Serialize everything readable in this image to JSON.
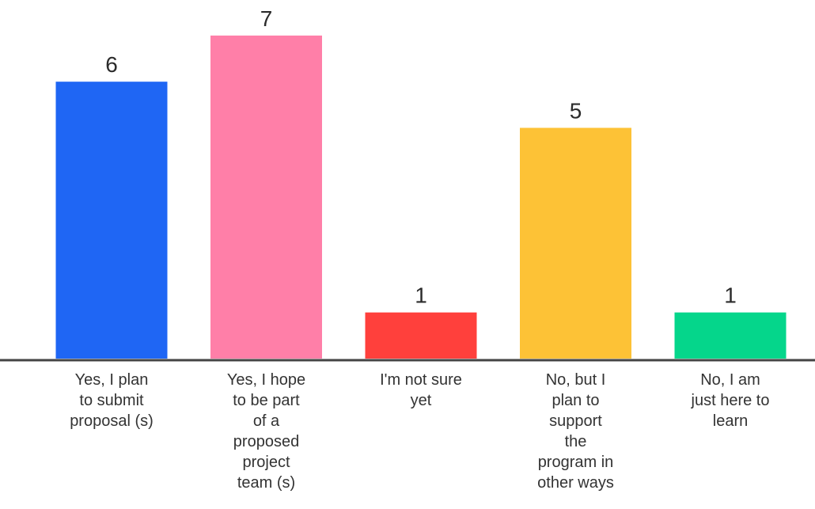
{
  "chart_data": {
    "type": "bar",
    "categories": [
      [
        "Yes, I plan",
        "to submit",
        "proposal (s)"
      ],
      [
        "Yes, I hope",
        "to be part",
        "of a",
        "proposed",
        "project",
        "team (s)"
      ],
      [
        "I'm not sure",
        "yet"
      ],
      [
        "No, but I",
        "plan to",
        "support",
        "the",
        "program in",
        "other ways"
      ],
      [
        "No, I am",
        "just here to",
        "learn"
      ]
    ],
    "values": [
      6,
      7,
      1,
      5,
      1
    ],
    "colors": [
      "#1f66f4",
      "#ff7fa8",
      "#ff403c",
      "#fdc236",
      "#05d68b"
    ],
    "ylim": [
      0,
      7
    ],
    "grid": false,
    "legend": false,
    "axis_color": "#444444"
  }
}
